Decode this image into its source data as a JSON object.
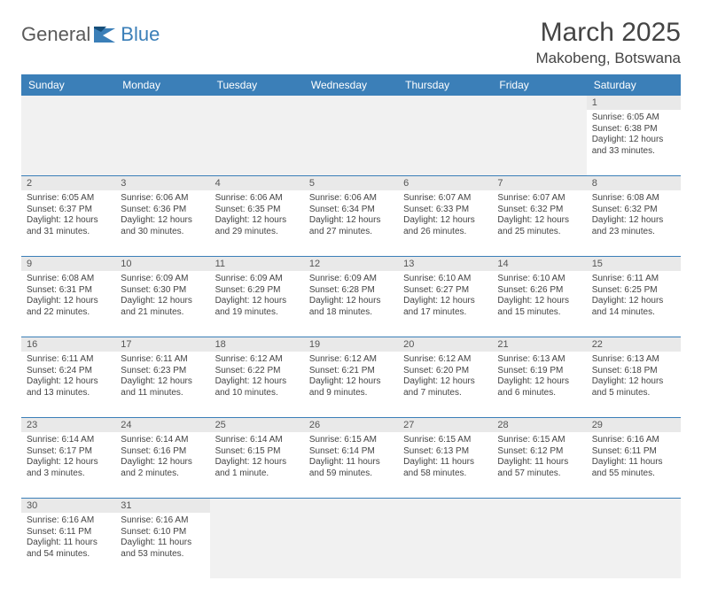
{
  "brand": {
    "part1": "General",
    "part2": "Blue"
  },
  "title": "March 2025",
  "location": "Makobeng, Botswana",
  "colors": {
    "header_bg": "#3b7fb8",
    "header_text": "#ffffff",
    "daynum_bg": "#e9e9e9",
    "empty_bg": "#f1f1f1",
    "text": "#444444",
    "row_border": "#3b7fb8"
  },
  "day_headers": [
    "Sunday",
    "Monday",
    "Tuesday",
    "Wednesday",
    "Thursday",
    "Friday",
    "Saturday"
  ],
  "weeks": [
    [
      {
        "empty": true
      },
      {
        "empty": true
      },
      {
        "empty": true
      },
      {
        "empty": true
      },
      {
        "empty": true
      },
      {
        "empty": true
      },
      {
        "day": "1",
        "sunrise": "Sunrise: 6:05 AM",
        "sunset": "Sunset: 6:38 PM",
        "daylight1": "Daylight: 12 hours",
        "daylight2": "and 33 minutes."
      }
    ],
    [
      {
        "day": "2",
        "sunrise": "Sunrise: 6:05 AM",
        "sunset": "Sunset: 6:37 PM",
        "daylight1": "Daylight: 12 hours",
        "daylight2": "and 31 minutes."
      },
      {
        "day": "3",
        "sunrise": "Sunrise: 6:06 AM",
        "sunset": "Sunset: 6:36 PM",
        "daylight1": "Daylight: 12 hours",
        "daylight2": "and 30 minutes."
      },
      {
        "day": "4",
        "sunrise": "Sunrise: 6:06 AM",
        "sunset": "Sunset: 6:35 PM",
        "daylight1": "Daylight: 12 hours",
        "daylight2": "and 29 minutes."
      },
      {
        "day": "5",
        "sunrise": "Sunrise: 6:06 AM",
        "sunset": "Sunset: 6:34 PM",
        "daylight1": "Daylight: 12 hours",
        "daylight2": "and 27 minutes."
      },
      {
        "day": "6",
        "sunrise": "Sunrise: 6:07 AM",
        "sunset": "Sunset: 6:33 PM",
        "daylight1": "Daylight: 12 hours",
        "daylight2": "and 26 minutes."
      },
      {
        "day": "7",
        "sunrise": "Sunrise: 6:07 AM",
        "sunset": "Sunset: 6:32 PM",
        "daylight1": "Daylight: 12 hours",
        "daylight2": "and 25 minutes."
      },
      {
        "day": "8",
        "sunrise": "Sunrise: 6:08 AM",
        "sunset": "Sunset: 6:32 PM",
        "daylight1": "Daylight: 12 hours",
        "daylight2": "and 23 minutes."
      }
    ],
    [
      {
        "day": "9",
        "sunrise": "Sunrise: 6:08 AM",
        "sunset": "Sunset: 6:31 PM",
        "daylight1": "Daylight: 12 hours",
        "daylight2": "and 22 minutes."
      },
      {
        "day": "10",
        "sunrise": "Sunrise: 6:09 AM",
        "sunset": "Sunset: 6:30 PM",
        "daylight1": "Daylight: 12 hours",
        "daylight2": "and 21 minutes."
      },
      {
        "day": "11",
        "sunrise": "Sunrise: 6:09 AM",
        "sunset": "Sunset: 6:29 PM",
        "daylight1": "Daylight: 12 hours",
        "daylight2": "and 19 minutes."
      },
      {
        "day": "12",
        "sunrise": "Sunrise: 6:09 AM",
        "sunset": "Sunset: 6:28 PM",
        "daylight1": "Daylight: 12 hours",
        "daylight2": "and 18 minutes."
      },
      {
        "day": "13",
        "sunrise": "Sunrise: 6:10 AM",
        "sunset": "Sunset: 6:27 PM",
        "daylight1": "Daylight: 12 hours",
        "daylight2": "and 17 minutes."
      },
      {
        "day": "14",
        "sunrise": "Sunrise: 6:10 AM",
        "sunset": "Sunset: 6:26 PM",
        "daylight1": "Daylight: 12 hours",
        "daylight2": "and 15 minutes."
      },
      {
        "day": "15",
        "sunrise": "Sunrise: 6:11 AM",
        "sunset": "Sunset: 6:25 PM",
        "daylight1": "Daylight: 12 hours",
        "daylight2": "and 14 minutes."
      }
    ],
    [
      {
        "day": "16",
        "sunrise": "Sunrise: 6:11 AM",
        "sunset": "Sunset: 6:24 PM",
        "daylight1": "Daylight: 12 hours",
        "daylight2": "and 13 minutes."
      },
      {
        "day": "17",
        "sunrise": "Sunrise: 6:11 AM",
        "sunset": "Sunset: 6:23 PM",
        "daylight1": "Daylight: 12 hours",
        "daylight2": "and 11 minutes."
      },
      {
        "day": "18",
        "sunrise": "Sunrise: 6:12 AM",
        "sunset": "Sunset: 6:22 PM",
        "daylight1": "Daylight: 12 hours",
        "daylight2": "and 10 minutes."
      },
      {
        "day": "19",
        "sunrise": "Sunrise: 6:12 AM",
        "sunset": "Sunset: 6:21 PM",
        "daylight1": "Daylight: 12 hours",
        "daylight2": "and 9 minutes."
      },
      {
        "day": "20",
        "sunrise": "Sunrise: 6:12 AM",
        "sunset": "Sunset: 6:20 PM",
        "daylight1": "Daylight: 12 hours",
        "daylight2": "and 7 minutes."
      },
      {
        "day": "21",
        "sunrise": "Sunrise: 6:13 AM",
        "sunset": "Sunset: 6:19 PM",
        "daylight1": "Daylight: 12 hours",
        "daylight2": "and 6 minutes."
      },
      {
        "day": "22",
        "sunrise": "Sunrise: 6:13 AM",
        "sunset": "Sunset: 6:18 PM",
        "daylight1": "Daylight: 12 hours",
        "daylight2": "and 5 minutes."
      }
    ],
    [
      {
        "day": "23",
        "sunrise": "Sunrise: 6:14 AM",
        "sunset": "Sunset: 6:17 PM",
        "daylight1": "Daylight: 12 hours",
        "daylight2": "and 3 minutes."
      },
      {
        "day": "24",
        "sunrise": "Sunrise: 6:14 AM",
        "sunset": "Sunset: 6:16 PM",
        "daylight1": "Daylight: 12 hours",
        "daylight2": "and 2 minutes."
      },
      {
        "day": "25",
        "sunrise": "Sunrise: 6:14 AM",
        "sunset": "Sunset: 6:15 PM",
        "daylight1": "Daylight: 12 hours",
        "daylight2": "and 1 minute."
      },
      {
        "day": "26",
        "sunrise": "Sunrise: 6:15 AM",
        "sunset": "Sunset: 6:14 PM",
        "daylight1": "Daylight: 11 hours",
        "daylight2": "and 59 minutes."
      },
      {
        "day": "27",
        "sunrise": "Sunrise: 6:15 AM",
        "sunset": "Sunset: 6:13 PM",
        "daylight1": "Daylight: 11 hours",
        "daylight2": "and 58 minutes."
      },
      {
        "day": "28",
        "sunrise": "Sunrise: 6:15 AM",
        "sunset": "Sunset: 6:12 PM",
        "daylight1": "Daylight: 11 hours",
        "daylight2": "and 57 minutes."
      },
      {
        "day": "29",
        "sunrise": "Sunrise: 6:16 AM",
        "sunset": "Sunset: 6:11 PM",
        "daylight1": "Daylight: 11 hours",
        "daylight2": "and 55 minutes."
      }
    ],
    [
      {
        "day": "30",
        "sunrise": "Sunrise: 6:16 AM",
        "sunset": "Sunset: 6:11 PM",
        "daylight1": "Daylight: 11 hours",
        "daylight2": "and 54 minutes."
      },
      {
        "day": "31",
        "sunrise": "Sunrise: 6:16 AM",
        "sunset": "Sunset: 6:10 PM",
        "daylight1": "Daylight: 11 hours",
        "daylight2": "and 53 minutes."
      },
      {
        "empty": true
      },
      {
        "empty": true
      },
      {
        "empty": true
      },
      {
        "empty": true
      },
      {
        "empty": true
      }
    ]
  ]
}
